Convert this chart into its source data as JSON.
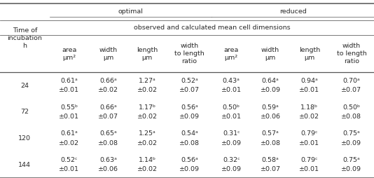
{
  "subheader": "observed and calculated mean cell dimensions",
  "col_headers": [
    "area\nμm²",
    "width\nμm",
    "length\nμm",
    "width\nto length\nratio",
    "area\nμm²",
    "width\nμm",
    "length\nμm",
    "width\nto length\nratio"
  ],
  "data": [
    {
      "row": "24",
      "values": [
        [
          "0.61ᵃ",
          "±0.01"
        ],
        [
          "0.66ᵃ",
          "±0.02"
        ],
        [
          "1.27ᵃ",
          "±0.02"
        ],
        [
          "0.52ᵃ",
          "±0.07"
        ],
        [
          "0.43ᵃ",
          "±0.01"
        ],
        [
          "0.64ᵃ",
          "±0.09"
        ],
        [
          "0.94ᵃ",
          "±0.01"
        ],
        [
          "0.70ᵃ",
          "±0.07"
        ]
      ]
    },
    {
      "row": "72",
      "values": [
        [
          "0.55ᵇ",
          "±0.01"
        ],
        [
          "0.66ᵃ",
          "±0.07"
        ],
        [
          "1.17ᵇ",
          "±0.02"
        ],
        [
          "0.56ᵃ",
          "±0.09"
        ],
        [
          "0.50ᵇ",
          "±0.01"
        ],
        [
          "0.59ᵃ",
          "±0.06"
        ],
        [
          "1.18ᵇ",
          "±0.02"
        ],
        [
          "0.50ᵇ",
          "±0.08"
        ]
      ]
    },
    {
      "row": "120",
      "values": [
        [
          "0.61ᵃ",
          "±0.02"
        ],
        [
          "0.65ᵃ",
          "±0.08"
        ],
        [
          "1.25ᵃ",
          "±0.02"
        ],
        [
          "0.54ᵃ",
          "±0.08"
        ],
        [
          "0.31ᶜ",
          "±0.09"
        ],
        [
          "0.57ᵃ",
          "±0.08"
        ],
        [
          "0.79ᶜ",
          "±0.01"
        ],
        [
          "0.75ᵃ",
          "±0.09"
        ]
      ]
    },
    {
      "row": "144",
      "values": [
        [
          "0.52ᶜ",
          "±0.01"
        ],
        [
          "0.63ᵃ",
          "±0.06"
        ],
        [
          "1.14ᵇ",
          "±0.02"
        ],
        [
          "0.56ᵃ",
          "±0.09"
        ],
        [
          "0.32ᶜ",
          "±0.09"
        ],
        [
          "0.58ᵃ",
          "±0.07"
        ],
        [
          "0.79ᶜ",
          "±0.01"
        ],
        [
          "0.75ᵃ",
          "±0.09"
        ]
      ]
    }
  ],
  "bg_color": "#ffffff",
  "text_color": "#2a2a2a",
  "line_color": "#555555",
  "font_size": 6.8
}
